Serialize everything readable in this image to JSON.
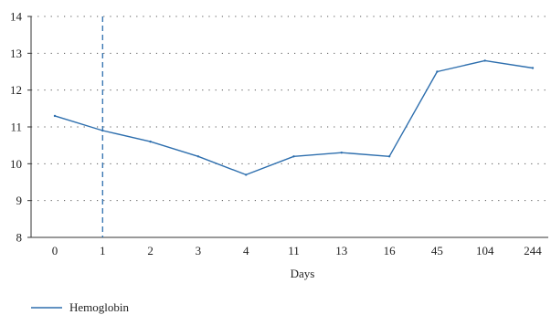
{
  "chart_data": {
    "type": "line",
    "title": "",
    "xlabel": "Days",
    "ylabel": "",
    "categories": [
      "0",
      "1",
      "2",
      "3",
      "4",
      "11",
      "13",
      "16",
      "45",
      "104",
      "244"
    ],
    "series": [
      {
        "name": "Hemoglobin",
        "values": [
          11.3,
          10.9,
          10.6,
          10.2,
          9.7,
          10.2,
          10.3,
          10.2,
          12.5,
          12.8,
          12.6
        ],
        "color": "#2e6fae"
      }
    ],
    "ylim": [
      8,
      14
    ],
    "yticks": [
      8,
      9,
      10,
      11,
      12,
      13,
      14
    ],
    "grid": "horizontal dotted",
    "reference_line": {
      "category": "1",
      "style": "dashed",
      "color": "#2e6fae"
    },
    "legend_position": "bottom-left"
  }
}
